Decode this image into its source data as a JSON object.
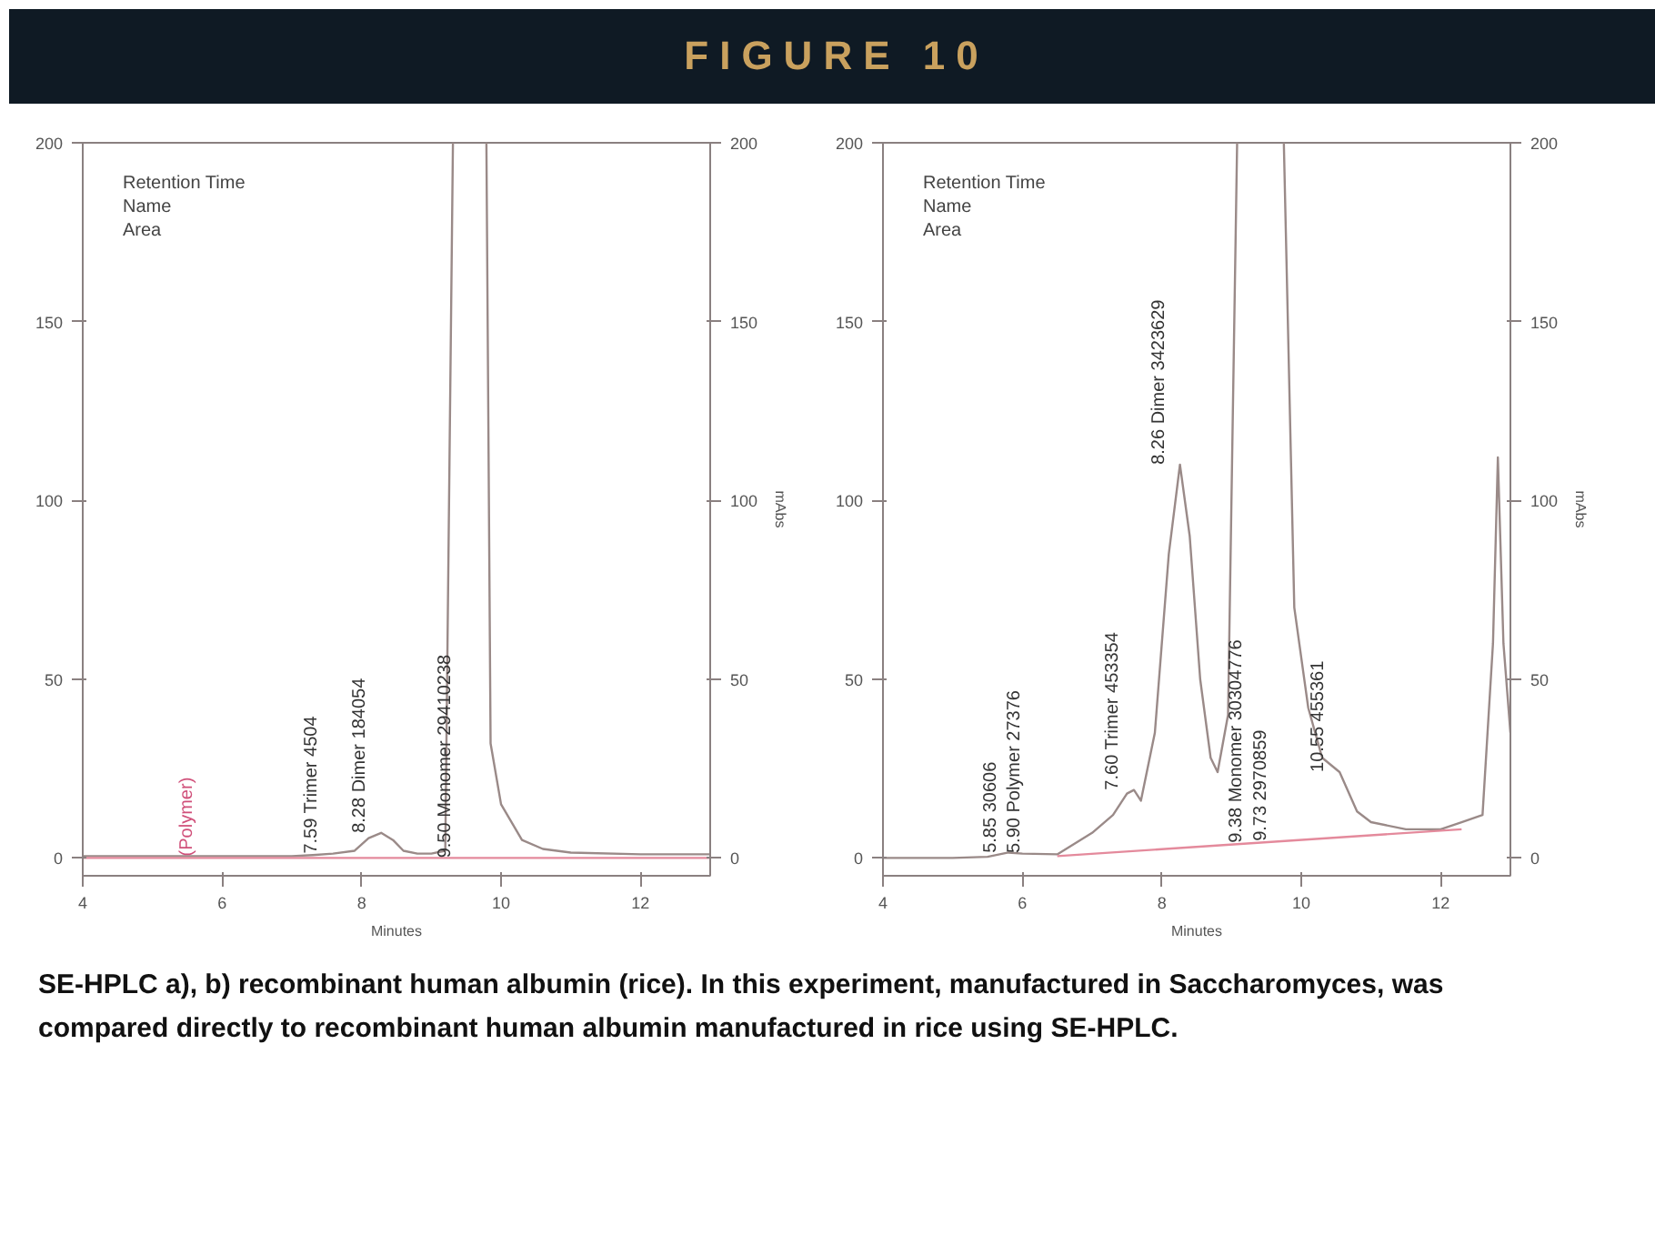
{
  "chart_data": [
    {
      "type": "line",
      "title": "FIGURE 10",
      "xlabel": "Minutes",
      "y2label": "mAbs",
      "legend_title": "Retention Time\nName\nArea",
      "xlim": [
        4,
        13
      ],
      "xticks": [
        4,
        6,
        8,
        10,
        12
      ],
      "ylim": [
        -5,
        200
      ],
      "yticks": [
        0,
        50,
        100,
        150,
        200
      ],
      "y2lim": [
        -5,
        200
      ],
      "y2ticks": [
        0,
        50,
        100,
        150,
        200
      ],
      "grid": false,
      "series": [
        {
          "color": "#9a8a88",
          "x": [
            4,
            5,
            6,
            7,
            7.3,
            7.59,
            7.9,
            8.1,
            8.28,
            8.45,
            8.6,
            8.8,
            9.0,
            9.2,
            9.31,
            9.5,
            9.79,
            9.85,
            10.0,
            10.3,
            10.6,
            11,
            12,
            13
          ],
          "values": [
            0.5,
            0.5,
            0.5,
            0.5,
            0.8,
            1.2,
            2,
            5.5,
            7,
            5,
            2,
            1.2,
            1.2,
            2,
            200,
            null,
            200,
            32,
            15,
            5,
            2.5,
            1.5,
            1,
            1
          ]
        },
        {
          "color": "#e48a9c",
          "x": [
            4,
            13
          ],
          "values": [
            0,
            0
          ]
        }
      ],
      "annotations": [
        {
          "text": "(Polymer)",
          "x": 5.8,
          "y": 0.5
        },
        {
          "text": "7.59  Trimer  4504",
          "x": 7.59,
          "y": 1.2
        },
        {
          "text": "8.28  Dimer  184054",
          "x": 8.28,
          "y": 7
        },
        {
          "text": "9.50  Monomer  29410238",
          "x": 9.5,
          "y": 0
        }
      ]
    },
    {
      "type": "line",
      "xlabel": "Minutes",
      "y2label": "mAbs",
      "legend_title": "Retention Time\nName\nArea",
      "xlim": [
        4,
        13
      ],
      "xticks": [
        4,
        6,
        8,
        10,
        12
      ],
      "ylim": [
        -5,
        200
      ],
      "yticks": [
        0,
        50,
        100,
        150,
        200
      ],
      "y2lim": [
        -5,
        200
      ],
      "y2ticks": [
        0,
        50,
        100,
        150,
        200
      ],
      "grid": false,
      "series": [
        {
          "color": "#9a8a88",
          "x": [
            4,
            5,
            5.5,
            5.8,
            6.0,
            6.5,
            7.0,
            7.3,
            7.5,
            7.6,
            7.7,
            7.9,
            8.1,
            8.26,
            8.4,
            8.55,
            8.7,
            8.8,
            8.95,
            9.08,
            9.4,
            9.75,
            9.9,
            10.1,
            10.3,
            10.55,
            10.8,
            11.0,
            11.5,
            12.0,
            12.3,
            12.6,
            12.75,
            12.82,
            12.9,
            13
          ],
          "values": [
            0,
            0,
            0.3,
            1.5,
            1.2,
            1,
            7,
            12,
            18,
            19,
            16,
            35,
            85,
            110,
            90,
            50,
            28,
            24,
            40,
            200,
            null,
            200,
            70,
            42,
            28,
            24,
            13,
            10,
            8,
            8,
            10,
            12,
            60,
            112,
            60,
            35
          ]
        },
        {
          "color": "#e48a9c",
          "x": [
            6.5,
            12.3
          ],
          "values": [
            0.5,
            8
          ]
        }
      ],
      "annotations": [
        {
          "text": "5.85  30606",
          "x": 5.85,
          "y": 1.4
        },
        {
          "text": "5.90  Polymer  27376",
          "x": 5.9,
          "y": 1.35
        },
        {
          "text": "7.60  Trimer  453354",
          "x": 7.6,
          "y": 19
        },
        {
          "text": "8.26  Dimer  3423629",
          "x": 8.26,
          "y": 110
        },
        {
          "text": "9.38  Monomer  30304776",
          "x": 9.38,
          "y": 4.2
        },
        {
          "text": "9.73  2970859",
          "x": 9.73,
          "y": 4.7
        },
        {
          "text": "10.55  455361",
          "x": 10.55,
          "y": 24
        },
        "SE-HPLC a), b) recombinant human albumin (rice). In this experiment, manufactured in Saccharomyces, was compared directly to recombinant human albumin manufactured in rice using SE-HPLC."
      ]
    }
  ]
}
